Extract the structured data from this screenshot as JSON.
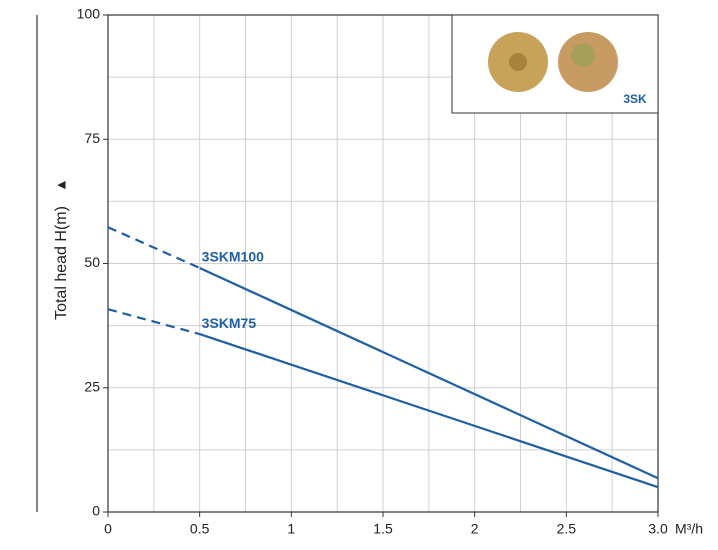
{
  "chart_data": {
    "type": "line",
    "y_label": "Total head H(m)",
    "y_arrow": "▲",
    "x_unit": "M³/h",
    "inset_label": "3SK",
    "x": [
      0,
      0.5,
      3.0
    ],
    "series": [
      {
        "name": "3SKM100",
        "color": "#1f5fa6",
        "values": [
          57.3,
          49.1,
          6.8
        ],
        "dashed_until": 0.5
      },
      {
        "name": "3SKM75",
        "color": "#1f5fa6",
        "values": [
          40.8,
          35.8,
          5.0
        ],
        "dashed_until": 0.5
      }
    ],
    "xlim": [
      0,
      3
    ],
    "ylim": [
      0,
      100
    ],
    "xticks": [
      0,
      0.5,
      1,
      1.5,
      2,
      2.5,
      {
        "value": 3,
        "label": "3.0"
      }
    ],
    "yticks": [
      0,
      25,
      50,
      75,
      100
    ],
    "x_minor_ticks": [
      0.25,
      0.75,
      1.25,
      1.75,
      2.25,
      2.75
    ],
    "y_minor_ticks": [
      12.5,
      37.5,
      62.5,
      87.5
    ],
    "grid": true
  }
}
